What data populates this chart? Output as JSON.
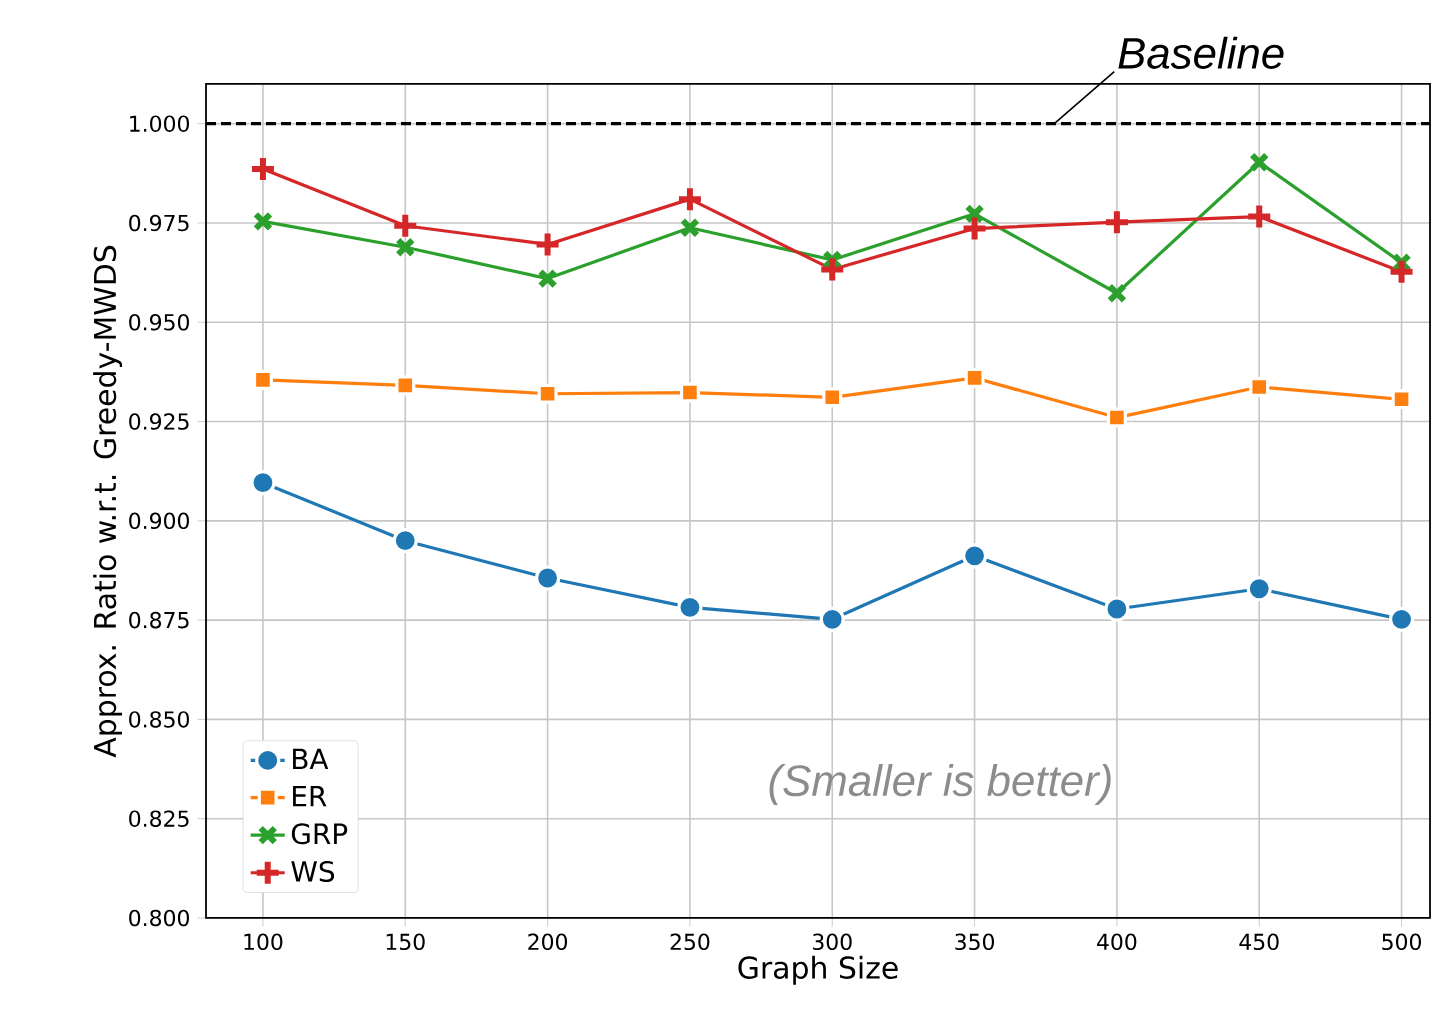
{
  "chart_data": {
    "type": "line",
    "xlabel": "Graph Size",
    "ylabel": "Approx. Ratio w.r.t. Greedy-MWDS",
    "x": [
      100,
      150,
      200,
      250,
      300,
      350,
      400,
      450,
      500
    ],
    "series": [
      {
        "name": "BA",
        "color": "#1f77b4",
        "marker": "circle",
        "values": [
          0.9096,
          0.895,
          0.8856,
          0.8782,
          0.8752,
          0.8912,
          0.8778,
          0.8829,
          0.8752
        ]
      },
      {
        "name": "ER",
        "color": "#ff7f0e",
        "marker": "square",
        "values": [
          0.9355,
          0.9341,
          0.932,
          0.9323,
          0.9311,
          0.936,
          0.926,
          0.9337,
          0.9306
        ]
      },
      {
        "name": "GRP",
        "color": "#2ca02c",
        "marker": "cross",
        "values": [
          0.9754,
          0.9689,
          0.961,
          0.9738,
          0.9657,
          0.9773,
          0.9573,
          0.9903,
          0.965
        ]
      },
      {
        "name": "WS",
        "color": "#d62728",
        "marker": "plus",
        "values": [
          0.9886,
          0.9743,
          0.9696,
          0.981,
          0.9633,
          0.9736,
          0.9752,
          0.9766,
          0.9627
        ]
      }
    ],
    "xlim": [
      80,
      510
    ],
    "ylim": [
      0.8,
      1.01
    ],
    "xticks": [
      100,
      150,
      200,
      250,
      300,
      350,
      400,
      450,
      500
    ],
    "yticks": [
      {
        "value": 0.8,
        "label": "0.800"
      },
      {
        "value": 0.825,
        "label": "0.825"
      },
      {
        "value": 0.85,
        "label": "0.850"
      },
      {
        "value": 0.875,
        "label": "0.875"
      },
      {
        "value": 0.9,
        "label": "0.900"
      },
      {
        "value": 0.925,
        "label": "0.925"
      },
      {
        "value": 0.95,
        "label": "0.950"
      },
      {
        "value": 0.975,
        "label": "0.975"
      },
      {
        "value": 1.0,
        "label": "1.000"
      }
    ],
    "ref_lines": [
      {
        "axis": "y",
        "value": 1.0,
        "color": "#000000",
        "line_style": "dashed"
      }
    ],
    "annotations": [
      {
        "text": "Baseline",
        "x": 378,
        "y": 1.0
      },
      "(Smaller is better)"
    ],
    "grid": true,
    "legend": "bottom left",
    "line_style": "solid"
  }
}
